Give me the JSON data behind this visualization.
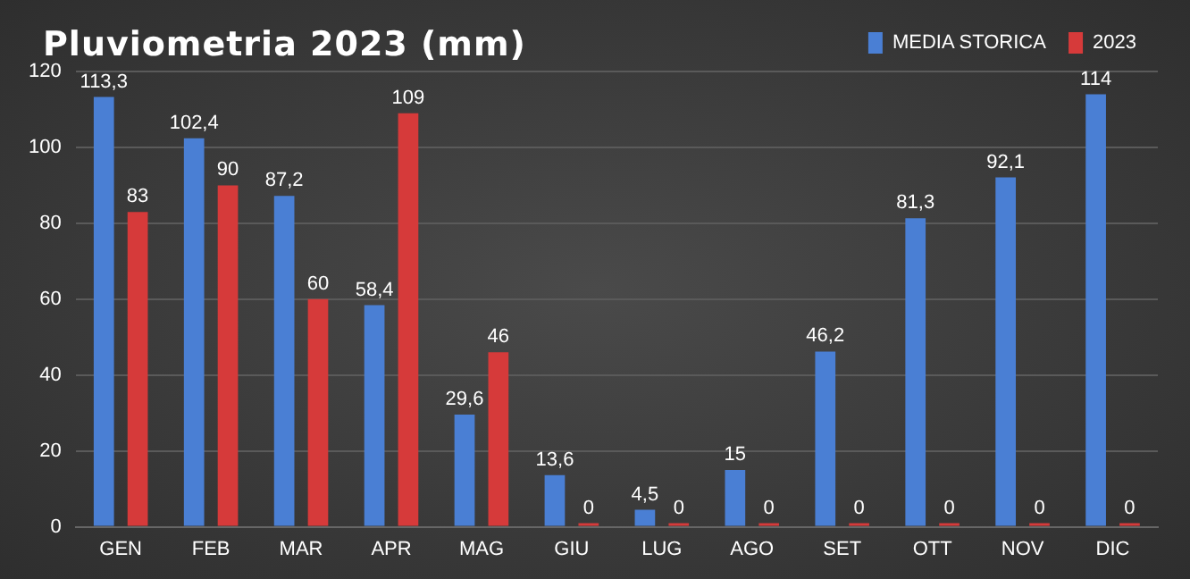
{
  "chart_data": {
    "type": "bar",
    "title": "Pluviometria 2023 (mm)",
    "categories": [
      "GEN",
      "FEB",
      "MAR",
      "APR",
      "MAG",
      "GIU",
      "LUG",
      "AGO",
      "SET",
      "OTT",
      "NOV",
      "DIC"
    ],
    "series": [
      {
        "name": "MEDIA STORICA",
        "color": "#4a7fd4",
        "values": [
          113.3,
          102.4,
          87.2,
          58.4,
          29.6,
          13.6,
          4.5,
          15,
          46.2,
          81.3,
          92.1,
          114
        ],
        "value_labels": [
          "113,3",
          "102,4",
          "87,2",
          "58,4",
          "29,6",
          "13,6",
          "4,5",
          "15",
          "46,2",
          "81,3",
          "92,1",
          "114"
        ]
      },
      {
        "name": "2023",
        "color": "#d63a3a",
        "values": [
          83,
          90,
          60,
          109,
          46,
          0,
          0,
          0,
          0,
          0,
          0,
          0
        ],
        "value_labels": [
          "83",
          "90",
          "60",
          "109",
          "46",
          "0",
          "0",
          "0",
          "0",
          "0",
          "0",
          "0"
        ]
      }
    ],
    "ylim": [
      0,
      120
    ],
    "yticks": [
      0,
      20,
      40,
      60,
      80,
      100,
      120
    ],
    "grid": "y",
    "legend": "top right"
  }
}
